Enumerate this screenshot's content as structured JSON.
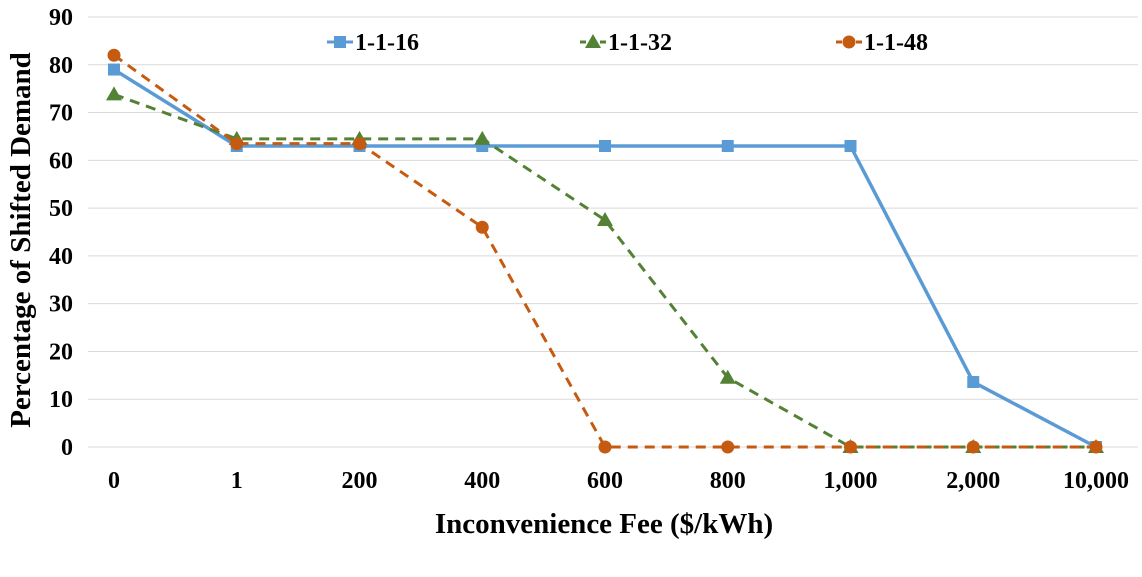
{
  "chart_data": {
    "type": "line",
    "title": "",
    "xlabel": "Inconvenience Fee ($/kWh)",
    "ylabel": "Percentage of Shifted Demand",
    "categories": [
      "0",
      "1",
      "200",
      "400",
      "600",
      "800",
      "1,000",
      "2,000",
      "10,000"
    ],
    "ylim": [
      0,
      90
    ],
    "yticks": [
      0,
      10,
      20,
      30,
      40,
      50,
      60,
      70,
      80,
      90
    ],
    "grid": true,
    "legend_position": "top",
    "series": [
      {
        "name": "1-1-16",
        "color": "#5b9bd5",
        "marker": "square",
        "line_style": "solid",
        "values": [
          79,
          63,
          63,
          63,
          63,
          63,
          63,
          13.6,
          0
        ]
      },
      {
        "name": "1-1-32",
        "color": "#548235",
        "marker": "triangle",
        "line_style": "dashed",
        "values": [
          73.8,
          64.5,
          64.5,
          64.5,
          47.5,
          14.5,
          0,
          0,
          0
        ]
      },
      {
        "name": "1-1-48",
        "color": "#c55a11",
        "marker": "circle",
        "line_style": "dashed",
        "values": [
          82,
          63.5,
          63.5,
          46,
          0,
          0,
          0,
          0,
          0
        ]
      }
    ]
  }
}
